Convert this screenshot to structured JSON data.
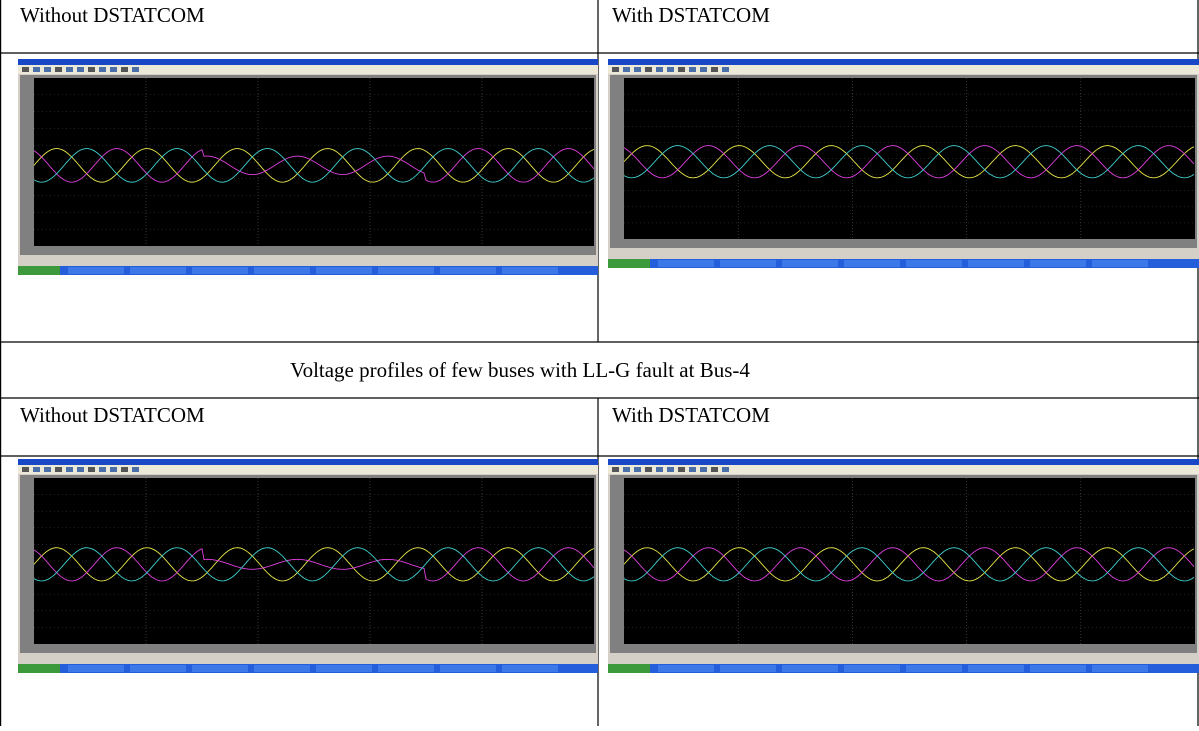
{
  "table": {
    "rows": [
      [
        "Without DSTATCOM",
        "With DSTATCOM"
      ],
      [
        "Voltage profiles of few buses with LL-G fault at Bus-4"
      ],
      [
        "Without DSTATCOM",
        "With DSTATCOM"
      ]
    ]
  }
}
